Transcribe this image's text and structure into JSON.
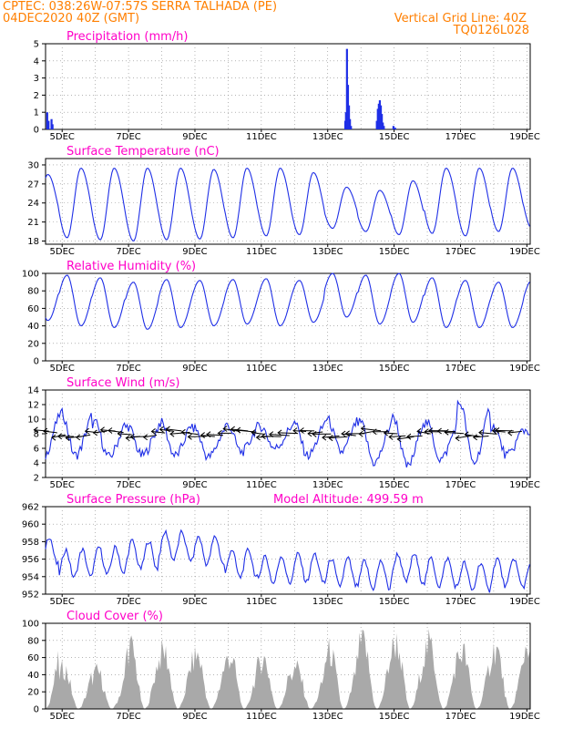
{
  "header": {
    "line1_left": "CPTEC:   038:26W-07:57S  SERRA TALHADA (PE)",
    "line2_left": "04DEC2020 40Z (GMT)",
    "line2_right": "Vertical Grid Line: 40Z",
    "line3_right": "TQ0126L028"
  },
  "colors": {
    "header": "#ff7f00",
    "title": "#ff00c8",
    "series": "#1f2fe6",
    "cloud": "#a9a9a9",
    "grid": "#888888"
  },
  "x_axis_labels": [
    "5DEC",
    "7DEC",
    "9DEC",
    "11DEC",
    "13DEC",
    "15DEC",
    "17DEC",
    "19DEC"
  ],
  "chart_data": [
    {
      "type": "bar",
      "id": "precip",
      "title": "Precipitation (mm/h)",
      "ylim": [
        0,
        5
      ],
      "yticks": [
        "0",
        "1",
        "2",
        "3",
        "4",
        "5"
      ],
      "day_range": [
        4.6,
        19.2
      ],
      "series": [
        {
          "name": "precipitation",
          "points": [
            [
              4.62,
              1.0
            ],
            [
              4.66,
              0.5
            ],
            [
              4.75,
              0.6
            ],
            [
              4.78,
              0.3
            ],
            [
              13.6,
              0.5
            ],
            [
              13.62,
              1.0
            ],
            [
              13.65,
              4.7
            ],
            [
              13.68,
              2.6
            ],
            [
              13.71,
              1.4
            ],
            [
              13.74,
              0.6
            ],
            [
              13.77,
              0.2
            ],
            [
              14.55,
              0.5
            ],
            [
              14.58,
              1.2
            ],
            [
              14.61,
              1.5
            ],
            [
              14.64,
              1.7
            ],
            [
              14.67,
              1.4
            ],
            [
              14.7,
              0.9
            ],
            [
              14.73,
              0.4
            ],
            [
              14.76,
              0.2
            ],
            [
              15.05,
              0.2
            ],
            [
              15.1,
              0.1
            ]
          ]
        }
      ]
    },
    {
      "type": "line",
      "id": "temp",
      "title": "Surface Temperature (nC)",
      "ylim": [
        17.5,
        31
      ],
      "yticks": [
        "18",
        "21",
        "24",
        "27",
        "30"
      ],
      "day_range": [
        4.6,
        19.2
      ],
      "series": [
        {
          "name": "temperature",
          "min_hour": 6,
          "max_hour": 16,
          "days": [
            {
              "min": 19.5,
              "max": 28.5
            },
            {
              "min": 18.5,
              "max": 29.5
            },
            {
              "min": 18.2,
              "max": 29.5
            },
            {
              "min": 18.0,
              "max": 29.5
            },
            {
              "min": 18.2,
              "max": 29.5
            },
            {
              "min": 18.3,
              "max": 29.3
            },
            {
              "min": 18.5,
              "max": 29.5
            },
            {
              "min": 18.8,
              "max": 29.5
            },
            {
              "min": 19.0,
              "max": 28.8
            },
            {
              "min": 20.0,
              "max": 26.5
            },
            {
              "min": 19.5,
              "max": 26.0
            },
            {
              "min": 19.0,
              "max": 27.5
            },
            {
              "min": 19.2,
              "max": 29.5
            },
            {
              "min": 18.8,
              "max": 29.5
            },
            {
              "min": 19.5,
              "max": 29.5
            },
            {
              "min": 20.0,
              "max": 29.5
            }
          ]
        }
      ]
    },
    {
      "type": "line",
      "id": "rh",
      "title": "Relative Humidity (%)",
      "ylim": [
        0,
        100
      ],
      "yticks": [
        "0",
        "20",
        "40",
        "60",
        "80",
        "100"
      ],
      "day_range": [
        4.6,
        19.2
      ],
      "series": [
        {
          "name": "humidity",
          "min_hour": 16,
          "max_hour": 6,
          "days": [
            {
              "min": 46,
              "max": 100
            },
            {
              "min": 40,
              "max": 98
            },
            {
              "min": 38,
              "max": 95
            },
            {
              "min": 36,
              "max": 90
            },
            {
              "min": 38,
              "max": 93
            },
            {
              "min": 40,
              "max": 92
            },
            {
              "min": 42,
              "max": 93
            },
            {
              "min": 40,
              "max": 94
            },
            {
              "min": 44,
              "max": 92
            },
            {
              "min": 50,
              "max": 100
            },
            {
              "min": 42,
              "max": 98
            },
            {
              "min": 44,
              "max": 100
            },
            {
              "min": 38,
              "max": 95
            },
            {
              "min": 38,
              "max": 92
            },
            {
              "min": 38,
              "max": 90
            },
            {
              "min": 40,
              "max": 92
            }
          ]
        }
      ]
    },
    {
      "type": "line",
      "id": "wind",
      "title": "Surface Wind (m/s)",
      "ylim": [
        2,
        14
      ],
      "yticks": [
        "2",
        "4",
        "6",
        "8",
        "10",
        "12",
        "14"
      ],
      "day_range": [
        4.6,
        19.2
      ],
      "series": [
        {
          "name": "wind_speed",
          "min_hour": 12,
          "max_hour": 2,
          "days": [
            {
              "min": 4.5,
              "max": 10.5
            },
            {
              "min": 5.0,
              "max": 10.8
            },
            {
              "min": 4.8,
              "max": 9.5
            },
            {
              "min": 5.0,
              "max": 9.0
            },
            {
              "min": 5.0,
              "max": 9.5
            },
            {
              "min": 4.8,
              "max": 8.8
            },
            {
              "min": 5.5,
              "max": 9.2
            },
            {
              "min": 6.0,
              "max": 9.0
            },
            {
              "min": 5.0,
              "max": 9.5
            },
            {
              "min": 5.5,
              "max": 10.0
            },
            {
              "min": 4.0,
              "max": 9.5
            },
            {
              "min": 3.5,
              "max": 10.2
            },
            {
              "min": 4.5,
              "max": 9.5
            },
            {
              "min": 4.0,
              "max": 12.2
            },
            {
              "min": 5.0,
              "max": 9.0
            },
            {
              "min": 6.0,
              "max": 8.5
            }
          ]
        }
      ],
      "vector_baseline": 8,
      "vectors_from_east": true
    },
    {
      "type": "line",
      "id": "pressure",
      "title": "Surface Pressure (hPa)",
      "subtitle": "Model Altitude: 499.59 m",
      "ylim": [
        952,
        962
      ],
      "yticks": [
        "952",
        "954",
        "956",
        "958",
        "960",
        "962"
      ],
      "day_range": [
        4.6,
        19.2
      ],
      "series": [
        {
          "name": "pressure",
          "diurnal_amplitude": 1.6,
          "days": [
            {
              "mean": 957.0
            },
            {
              "mean": 955.5
            },
            {
              "mean": 955.8
            },
            {
              "mean": 956.5
            },
            {
              "mean": 957.5
            },
            {
              "mean": 957.0
            },
            {
              "mean": 955.5
            },
            {
              "mean": 954.8
            },
            {
              "mean": 955.0
            },
            {
              "mean": 954.5
            },
            {
              "mean": 954.2
            },
            {
              "mean": 955.0
            },
            {
              "mean": 954.5
            },
            {
              "mean": 954.0
            },
            {
              "mean": 954.5
            },
            {
              "mean": 954.0
            }
          ]
        }
      ]
    },
    {
      "type": "area",
      "id": "cloud",
      "title": "Cloud Cover (%)",
      "ylim": [
        0,
        100
      ],
      "yticks": [
        "0",
        "20",
        "40",
        "60",
        "80",
        "100"
      ],
      "day_range": [
        4.6,
        19.2
      ],
      "series": [
        {
          "name": "cloud_cover",
          "days": [
            {
              "peak": 90
            },
            {
              "peak": 60
            },
            {
              "peak": 55
            },
            {
              "peak": 92
            },
            {
              "peak": 85
            },
            {
              "peak": 80
            },
            {
              "peak": 78
            },
            {
              "peak": 75
            },
            {
              "peak": 60
            },
            {
              "peak": 85
            },
            {
              "peak": 98
            },
            {
              "peak": 98
            },
            {
              "peak": 95
            },
            {
              "peak": 85
            },
            {
              "peak": 90
            },
            {
              "peak": 98
            }
          ]
        }
      ]
    }
  ]
}
